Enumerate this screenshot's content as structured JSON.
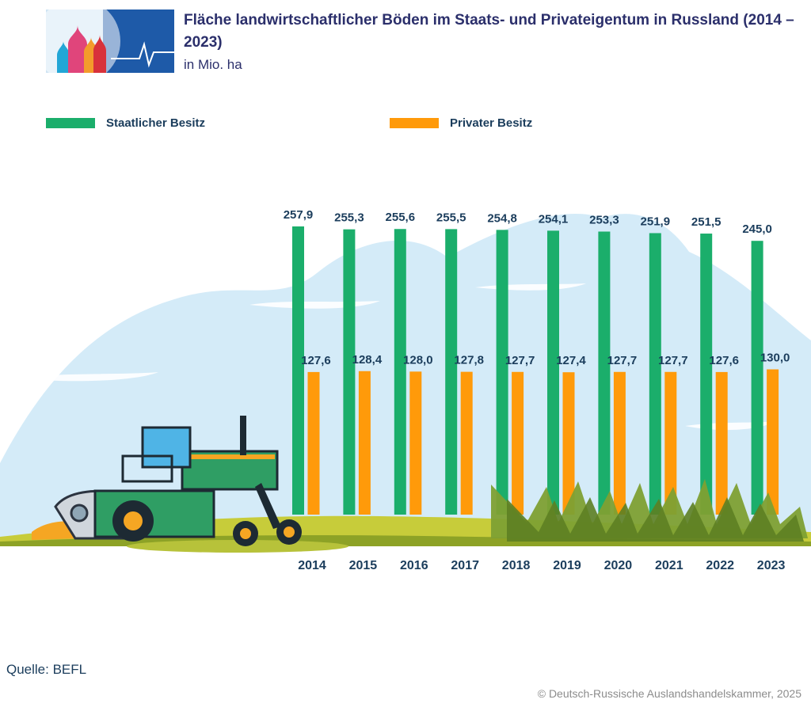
{
  "header": {
    "title": "Fläche landwirtschaftlicher Böden im Staats- und Privateigentum in Russland (2014 – 2023)",
    "subtitle": "in Mio. ha",
    "logo_name": "kremlin-domes-logo"
  },
  "chart_data": {
    "type": "bar",
    "title": "Fläche landwirtschaftlicher Böden im Staats- und Privateigentum in Russland (2014 – 2023)",
    "unit": "in Mio. ha",
    "categories": [
      "2014",
      "2015",
      "2016",
      "2017",
      "2018",
      "2019",
      "2020",
      "2021",
      "2022",
      "2023"
    ],
    "series": [
      {
        "name": "Staatlicher Besitz",
        "color": "#1bae6b",
        "values": [
          257.9,
          255.3,
          255.6,
          255.5,
          254.8,
          254.1,
          253.3,
          251.9,
          251.5,
          245.0
        ],
        "labels": [
          "257,9",
          "255,3",
          "255,6",
          "255,5",
          "254,8",
          "254,1",
          "253,3",
          "251,9",
          "251,5",
          "245,0"
        ]
      },
      {
        "name": "Privater Besitz",
        "color": "#ff9a0a",
        "values": [
          127.6,
          128.4,
          128.0,
          127.8,
          127.7,
          127.4,
          127.7,
          127.7,
          127.6,
          130.0
        ],
        "labels": [
          "127,6",
          "128,4",
          "128,0",
          "127,8",
          "127,7",
          "127,4",
          "127,7",
          "127,7",
          "127,6",
          "130,0"
        ]
      }
    ],
    "legend_position": "top",
    "grid": false
  },
  "footer": {
    "source": "Quelle: BEFL",
    "copyright": "© Deutsch-Russische Auslandshandelskammer, 2025"
  }
}
